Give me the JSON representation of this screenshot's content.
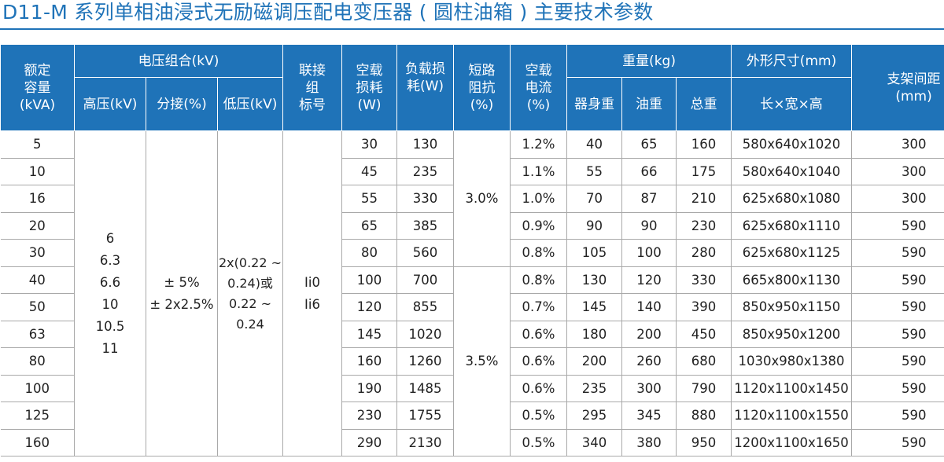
{
  "title": "D11-M 系列单相油浸式无励磁调压配电变压器 ( 圆柱油箱 ) 主要技术参数",
  "header": {
    "rated_capacity": [
      "额定",
      "容量",
      "(kVA)"
    ],
    "voltage_group": "电压组合(kV)",
    "high_voltage": "高压(kV)",
    "tap": "分接(%)",
    "low_voltage": "低压(kV)",
    "connection": [
      "联接",
      "组",
      "标号"
    ],
    "no_load_loss": [
      "空载",
      "损耗",
      "(W)"
    ],
    "load_loss": [
      "负载损",
      "耗(W)"
    ],
    "short_circuit_impedance": [
      "短路",
      "阻抗",
      "(%)"
    ],
    "no_load_current": [
      "空载",
      "电流",
      "(%)"
    ],
    "weight": "重量(kg)",
    "body_weight": "器身重",
    "oil_weight": "油重",
    "total_weight": "总重",
    "dimensions": "外形尺寸(mm)",
    "dimensions_sub": "长×宽×高",
    "support_spacing": [
      "支架间距",
      "(mm)"
    ]
  },
  "merged": {
    "high_voltage": [
      "6",
      "6.3",
      "6.6",
      "10",
      "10.5",
      "11"
    ],
    "tap": [
      "± 5%",
      "± 2x2.5%"
    ],
    "low_voltage": [
      "2x(0.22 ~",
      "0.24)或",
      "0.22 ~",
      "0.24"
    ],
    "connection": [
      "Ii0",
      "Ii6"
    ],
    "impedance_a": "3.0%",
    "impedance_b": "3.5%"
  },
  "rows": [
    {
      "capacity": "5",
      "no_load_loss": "30",
      "load_loss": "130",
      "no_load_current": "1.2%",
      "body": "40",
      "oil": "65",
      "total": "160",
      "dims": "580x640x1020",
      "spacing": "300"
    },
    {
      "capacity": "10",
      "no_load_loss": "45",
      "load_loss": "235",
      "no_load_current": "1.1%",
      "body": "55",
      "oil": "66",
      "total": "175",
      "dims": "580x640x1040",
      "spacing": "300"
    },
    {
      "capacity": "16",
      "no_load_loss": "55",
      "load_loss": "330",
      "no_load_current": "1.0%",
      "body": "70",
      "oil": "87",
      "total": "210",
      "dims": "625x680x1080",
      "spacing": "300"
    },
    {
      "capacity": "20",
      "no_load_loss": "65",
      "load_loss": "385",
      "no_load_current": "0.9%",
      "body": "90",
      "oil": "90",
      "total": "230",
      "dims": "625x680x1110",
      "spacing": "590"
    },
    {
      "capacity": "30",
      "no_load_loss": "80",
      "load_loss": "560",
      "no_load_current": "0.8%",
      "body": "105",
      "oil": "100",
      "total": "280",
      "dims": "625x680x1125",
      "spacing": "590"
    },
    {
      "capacity": "40",
      "no_load_loss": "100",
      "load_loss": "700",
      "no_load_current": "0.8%",
      "body": "130",
      "oil": "120",
      "total": "330",
      "dims": "665x800x1130",
      "spacing": "590"
    },
    {
      "capacity": "50",
      "no_load_loss": "120",
      "load_loss": "855",
      "no_load_current": "0.7%",
      "body": "145",
      "oil": "140",
      "total": "390",
      "dims": "850x950x1150",
      "spacing": "590"
    },
    {
      "capacity": "63",
      "no_load_loss": "145",
      "load_loss": "1020",
      "no_load_current": "0.6%",
      "body": "180",
      "oil": "200",
      "total": "450",
      "dims": "850x950x1200",
      "spacing": "590"
    },
    {
      "capacity": "80",
      "no_load_loss": "160",
      "load_loss": "1260",
      "no_load_current": "0.6%",
      "body": "200",
      "oil": "260",
      "total": "680",
      "dims": "1030x980x1380",
      "spacing": "590"
    },
    {
      "capacity": "100",
      "no_load_loss": "190",
      "load_loss": "1485",
      "no_load_current": "0.6%",
      "body": "235",
      "oil": "300",
      "total": "790",
      "dims": "1120x1100x1450",
      "spacing": "590"
    },
    {
      "capacity": "125",
      "no_load_loss": "230",
      "load_loss": "1755",
      "no_load_current": "0.5%",
      "body": "295",
      "oil": "345",
      "total": "880",
      "dims": "1120x1100x1550",
      "spacing": "590"
    },
    {
      "capacity": "160",
      "no_load_loss": "290",
      "load_loss": "2130",
      "no_load_current": "0.5%",
      "body": "340",
      "oil": "380",
      "total": "950",
      "dims": "1200x1100x1650",
      "spacing": "590"
    }
  ],
  "colors": {
    "accent": "#1f73b8",
    "text": "#222222",
    "rule": "#a9a9a9"
  }
}
